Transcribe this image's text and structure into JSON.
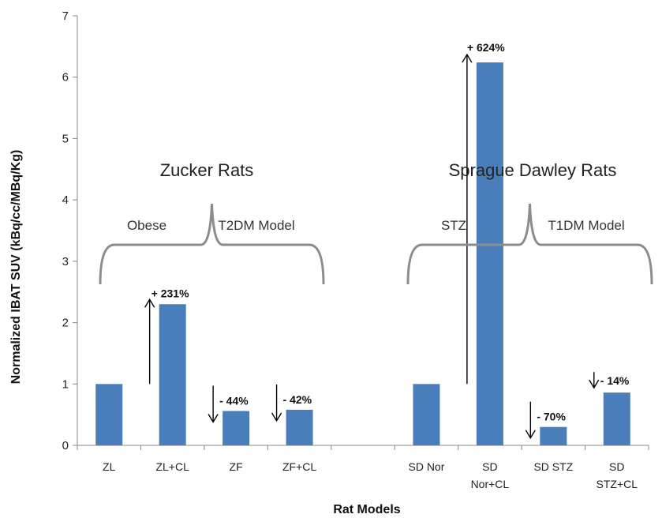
{
  "chart_data": {
    "type": "bar",
    "categories": [
      [
        "ZL"
      ],
      [
        "ZL+CL"
      ],
      [
        "ZF"
      ],
      [
        "ZF+CL"
      ],
      [
        "SD Nor"
      ],
      [
        "SD",
        "Nor+CL"
      ],
      [
        "SD STZ"
      ],
      [
        "SD",
        "STZ+CL"
      ]
    ],
    "values": [
      1.0,
      2.3,
      0.56,
      0.58,
      1.0,
      6.24,
      0.3,
      0.86
    ],
    "ylim": [
      0,
      7
    ],
    "yticks": [
      "0",
      "1",
      "2",
      "3",
      "4",
      "5",
      "6",
      "7"
    ],
    "xlabel": "Rat Models",
    "ylabel": "Normalized IBAT SUV (kBq/cc/MBq/Kg)",
    "bar_color": "#4a7ebb",
    "annotations": [
      {
        "bar": 1,
        "text": "+ 231%",
        "arrow": "up"
      },
      {
        "bar": 2,
        "text": "- 44%",
        "arrow": "down"
      },
      {
        "bar": 3,
        "text": "- 42%",
        "arrow": "down"
      },
      {
        "bar": 5,
        "text": "+ 624%",
        "arrow": "up"
      },
      {
        "bar": 6,
        "text": "- 70%",
        "arrow": "down"
      },
      {
        "bar": 7,
        "text": "- 14%",
        "arrow": "down"
      }
    ],
    "groups": [
      {
        "title": "Zucker Rats",
        "left_label": "Obese",
        "right_label": "T2DM Model"
      },
      {
        "title": "Sprague Dawley Rats",
        "left_label": "STZ",
        "right_label": "T1DM Model"
      }
    ]
  }
}
